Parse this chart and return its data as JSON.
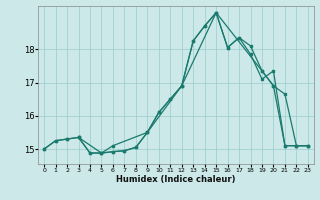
{
  "xlabel": "Humidex (Indice chaleur)",
  "bg_color": "#cce8e8",
  "line_color": "#1a7a6e",
  "grid_color": "#99cccc",
  "xlim": [
    -0.5,
    23.5
  ],
  "ylim": [
    14.55,
    19.3
  ],
  "yticks": [
    15,
    16,
    17,
    18
  ],
  "xticks": [
    0,
    1,
    2,
    3,
    4,
    5,
    6,
    7,
    8,
    9,
    10,
    11,
    12,
    13,
    14,
    15,
    16,
    17,
    18,
    19,
    20,
    21,
    22,
    23
  ],
  "line1_x": [
    0,
    1,
    2,
    3,
    4,
    5,
    6,
    7,
    8,
    9,
    10,
    11,
    12,
    13,
    14,
    15,
    16,
    17,
    18,
    19,
    20,
    21,
    22,
    23
  ],
  "line1_y": [
    15.0,
    15.25,
    15.3,
    15.35,
    14.88,
    14.88,
    14.92,
    14.95,
    15.05,
    15.5,
    16.1,
    16.5,
    16.9,
    18.25,
    18.7,
    19.1,
    18.05,
    18.35,
    18.1,
    17.35,
    16.9,
    16.65,
    15.1,
    15.1
  ],
  "line2_x": [
    0,
    1,
    2,
    3,
    4,
    5,
    6,
    7,
    8,
    9,
    10,
    11,
    12,
    13,
    14,
    15,
    16,
    17,
    18,
    19,
    20,
    21,
    22,
    23
  ],
  "line2_y": [
    15.0,
    15.25,
    15.3,
    15.35,
    14.88,
    14.88,
    14.92,
    14.95,
    15.05,
    15.5,
    16.1,
    16.5,
    16.9,
    18.25,
    18.7,
    19.1,
    18.05,
    18.35,
    17.85,
    17.1,
    17.35,
    15.1,
    15.1,
    15.1
  ],
  "line3_x": [
    3,
    5,
    6,
    9,
    12,
    15,
    19,
    20,
    21,
    22,
    23
  ],
  "line3_y": [
    15.35,
    14.88,
    15.1,
    15.5,
    16.9,
    19.1,
    17.35,
    16.9,
    15.1,
    15.1,
    15.1
  ]
}
